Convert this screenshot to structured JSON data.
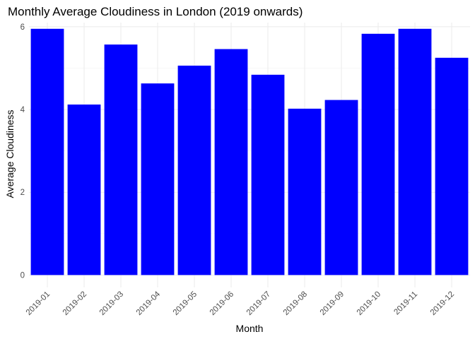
{
  "chart_data": {
    "type": "bar",
    "title": "Monthly Average Cloudiness in London (2019 onwards)",
    "xlabel": "Month",
    "ylabel": "Average Cloudiness",
    "categories": [
      "2019-01",
      "2019-02",
      "2019-03",
      "2019-04",
      "2019-05",
      "2019-06",
      "2019-07",
      "2019-08",
      "2019-09",
      "2019-10",
      "2019-11",
      "2019-12"
    ],
    "values": [
      5.95,
      4.12,
      5.57,
      4.63,
      5.06,
      5.46,
      4.84,
      4.02,
      4.23,
      5.83,
      5.95,
      5.25
    ],
    "ylim": [
      -0.3,
      6.1
    ],
    "yticks": [
      0,
      2,
      4,
      6
    ],
    "bar_color": "#0000ff",
    "grid": true
  }
}
